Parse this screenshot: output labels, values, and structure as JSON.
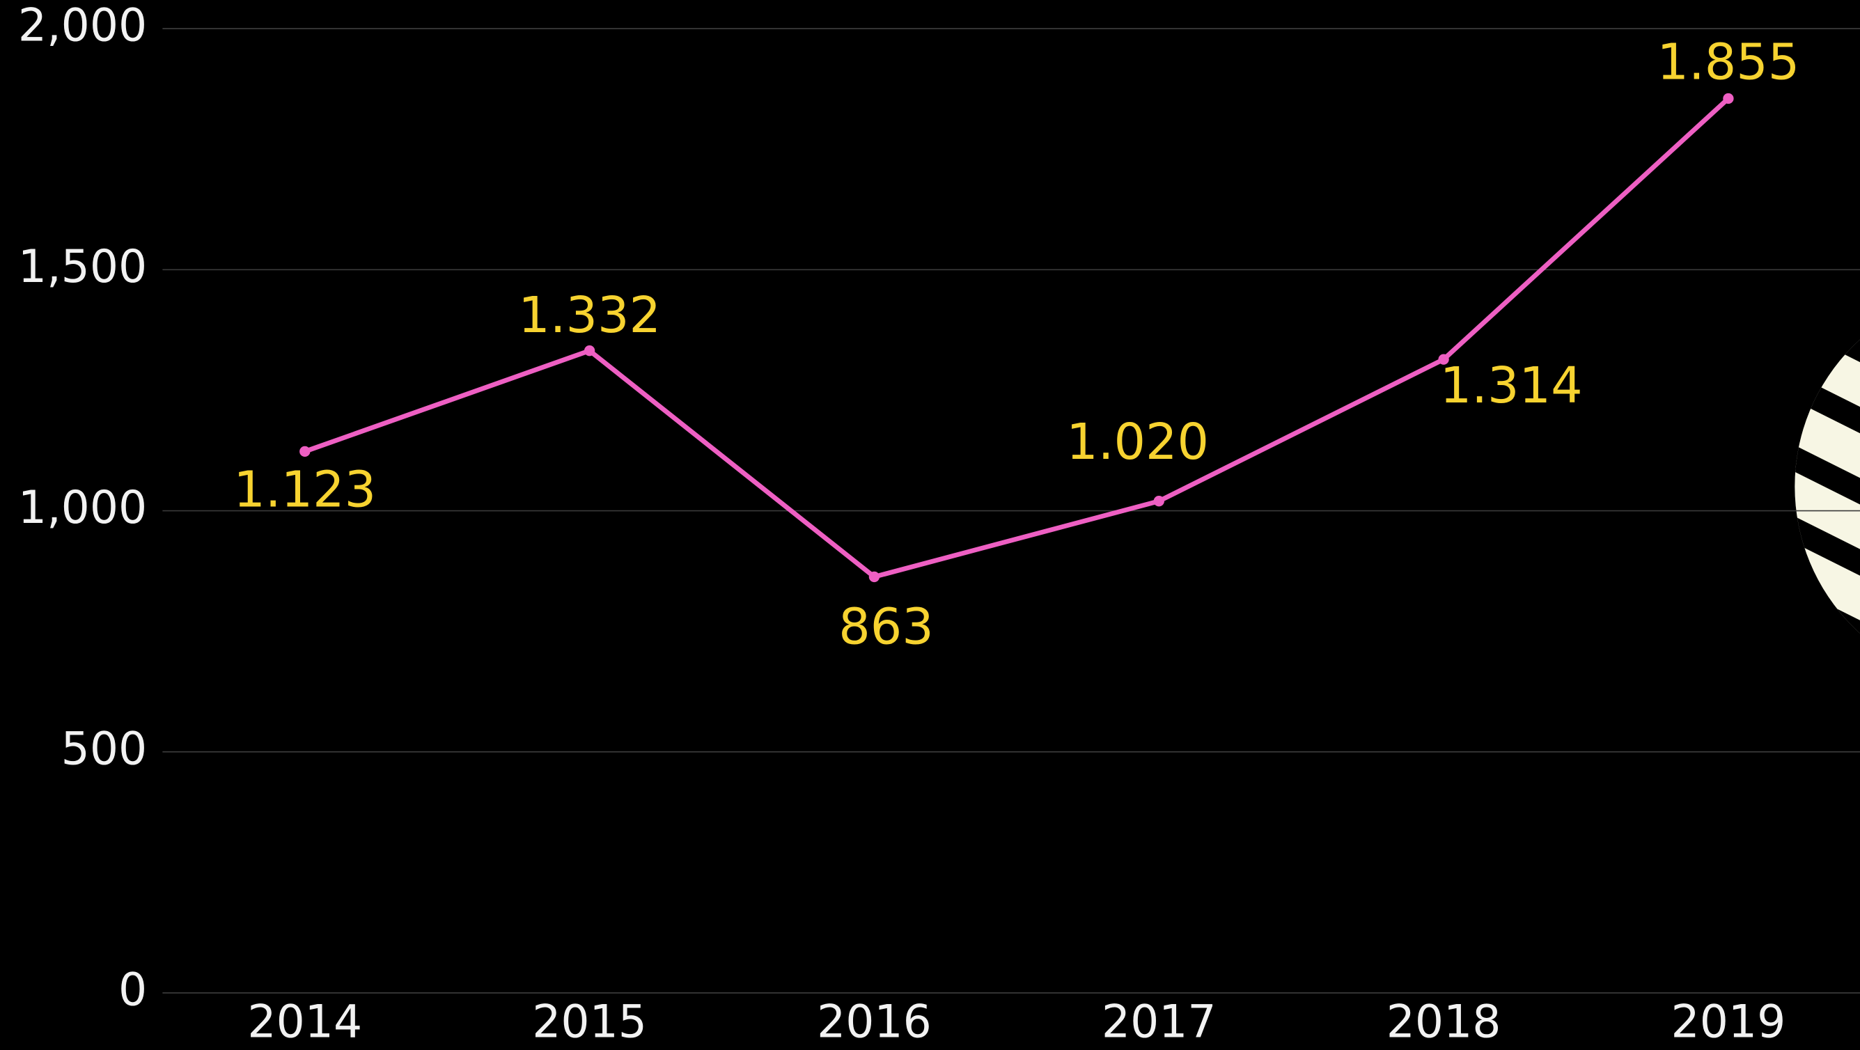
{
  "chart_data": {
    "type": "line",
    "categories": [
      "2014",
      "2015",
      "2016",
      "2017",
      "2018",
      "2019"
    ],
    "series": [
      {
        "color": "#ee5fc3",
        "values": [
          1123,
          1332,
          863,
          1020,
          1314,
          1855
        ],
        "value_labels": [
          "1.123",
          "1.332",
          "863",
          "1.020",
          "1.314",
          "1.855"
        ]
      }
    ],
    "ylim": [
      0,
      2000
    ],
    "yticks": [
      0,
      500,
      {
        "value": 1000,
        "label": "1,000"
      },
      {
        "value": 1500,
        "label": "1,500"
      },
      {
        "value": 2000,
        "label": "2,000"
      }
    ],
    "grid": true,
    "label_color": "#f7d330"
  }
}
